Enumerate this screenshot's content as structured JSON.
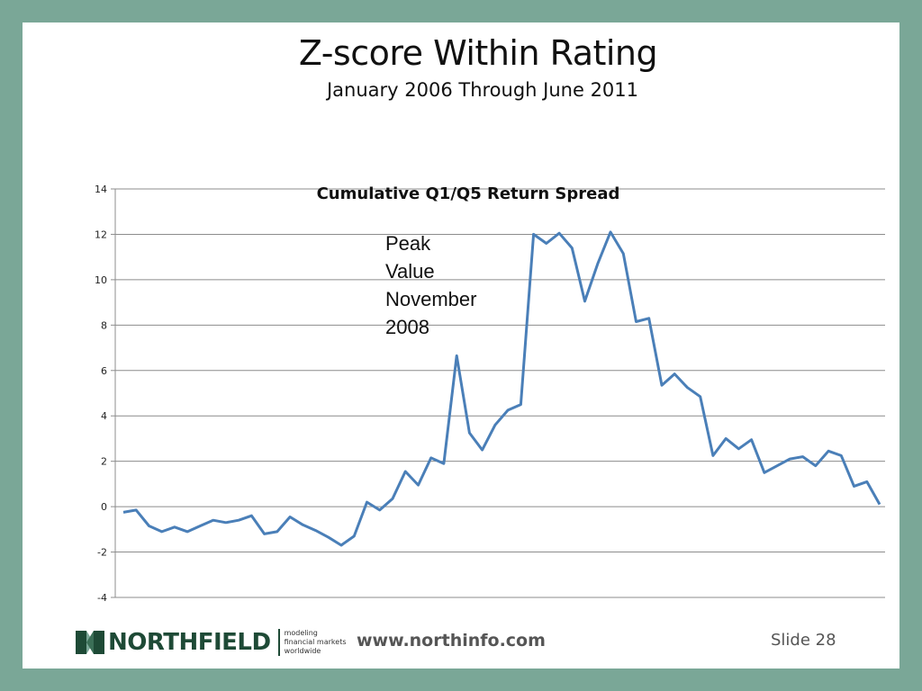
{
  "slide": {
    "title": "Z-score Within Rating",
    "subtitle": "January 2006 Through June 2011",
    "slide_label": "Slide 28",
    "url": "www.northinfo.com"
  },
  "logo": {
    "name": "NORTHFIELD",
    "tagline": [
      "modeling",
      "financial markets",
      "worldwide"
    ],
    "color": "#1e4a36"
  },
  "colors": {
    "frame": "#7aa797",
    "line": "#4a7fb8",
    "grid": "#8c8c8c"
  },
  "chart_data": {
    "type": "line",
    "title": "Cumulative  Q1/Q5 Return Spread",
    "xlabel": "",
    "ylabel": "",
    "ylim": [
      -4,
      14
    ],
    "yticks": [
      14,
      12,
      10,
      8,
      6,
      4,
      2,
      0,
      -2,
      -4
    ],
    "grid": true,
    "x_start": "Jan 2006",
    "x_end": "Jun 2011",
    "series": [
      {
        "values": [
          -0.25,
          -0.15,
          -0.85,
          -1.1,
          -0.9,
          -1.1,
          -0.85,
          -0.6,
          -0.7,
          -0.6,
          -0.4,
          -1.2,
          -1.1,
          -0.45,
          -0.8,
          -1.05,
          -1.35,
          -1.7,
          -1.3,
          0.2,
          -0.15,
          0.35,
          1.55,
          0.95,
          2.15,
          1.9,
          6.65,
          3.25,
          2.5,
          3.6,
          4.25,
          4.5,
          12.0,
          11.6,
          12.05,
          11.4,
          9.05,
          10.7,
          12.1,
          11.15,
          8.15,
          8.3,
          5.35,
          5.85,
          5.25,
          4.85,
          2.25,
          3.0,
          2.55,
          2.95,
          1.5,
          1.8,
          2.1,
          2.2,
          1.8,
          2.45,
          2.25,
          0.9,
          1.1,
          0.1
        ]
      }
    ],
    "annotation": [
      "Peak",
      "Value",
      "November",
      "2008"
    ]
  }
}
